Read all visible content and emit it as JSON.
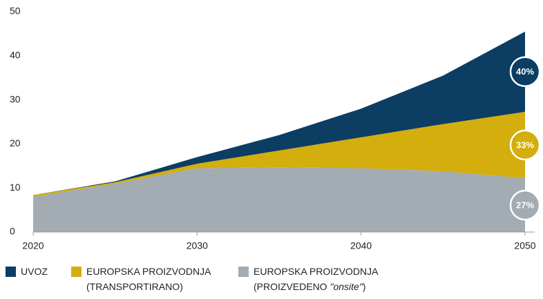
{
  "chart_data": {
    "type": "stacked_area",
    "x": [
      2020,
      2025,
      2030,
      2035,
      2040,
      2045,
      2050
    ],
    "series": [
      {
        "name": "EUROPSKA PROIZVODNJA (PROIZVEDENO \"onsite\")",
        "color": "#a3abb3",
        "values": [
          8,
          11,
          14.5,
          14.7,
          14.5,
          13.8,
          12.2
        ],
        "end_label": "27%"
      },
      {
        "name": "EUROPSKA PROIZVODNJA (TRANSPORTIRANO)",
        "color": "#d3ae0c",
        "values": [
          0.4,
          0.3,
          1,
          3.8,
          7,
          10.7,
          15.1
        ],
        "end_label": "33%"
      },
      {
        "name": "UVOZ",
        "color": "#0c3d63",
        "values": [
          0,
          0.2,
          1.5,
          3.5,
          6.5,
          11,
          18.2
        ],
        "end_label": "40%"
      }
    ],
    "xlim": [
      2020,
      2050
    ],
    "xticks": [
      2020,
      2030,
      2040,
      2050
    ],
    "ylim": [
      0,
      50
    ],
    "yticks": [
      0,
      10,
      20,
      30,
      40,
      50
    ],
    "legend_order": [
      2,
      1,
      0
    ]
  }
}
